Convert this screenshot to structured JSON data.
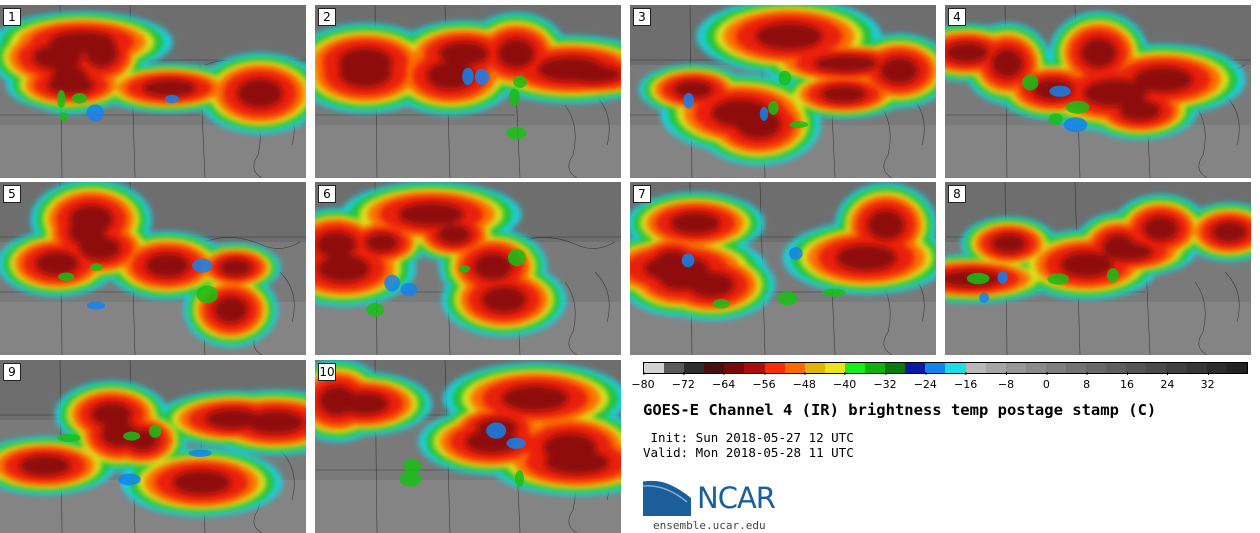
{
  "panels": [
    {
      "label": "1"
    },
    {
      "label": "2"
    },
    {
      "label": "3"
    },
    {
      "label": "4"
    },
    {
      "label": "5"
    },
    {
      "label": "6"
    },
    {
      "label": "7"
    },
    {
      "label": "8"
    },
    {
      "label": "9"
    },
    {
      "label": "10"
    }
  ],
  "colorbar": {
    "min": -80,
    "max": 40,
    "step": 4,
    "tick_labels": [
      "−80",
      "−72",
      "−64",
      "−56",
      "−48",
      "−40",
      "−32",
      "−24",
      "−16",
      "−8",
      "0",
      "8",
      "16",
      "24",
      "32"
    ],
    "colors": [
      "#d4d4d4",
      "#5a5a5a",
      "#2e2e2e",
      "#4a1010",
      "#7a0a0a",
      "#b00c0c",
      "#ff2a0a",
      "#ff6a00",
      "#e0b400",
      "#ece414",
      "#16f016",
      "#0cb40c",
      "#0a7a0a",
      "#0a1aa4",
      "#1482ee",
      "#18e0e8",
      "#b8b8b8",
      "#a6a6a6",
      "#969696",
      "#8a8a8a",
      "#7e7e7e",
      "#727272",
      "#686868",
      "#5e5e5e",
      "#545454",
      "#4a4a4a",
      "#404040",
      "#363636",
      "#2c2c2c",
      "#222222"
    ]
  },
  "title": "GOES-E Channel 4 (IR) brightness temp postage stamp (C)",
  "init_line": " Init: Sun 2018-05-27 12 UTC",
  "valid_line": "Valid: Mon 2018-05-28 11 UTC",
  "logo": {
    "text": "NCAR",
    "url": "ensemble.ucar.edu"
  },
  "colors": {
    "ncar_blue": "#1b5e9a"
  }
}
